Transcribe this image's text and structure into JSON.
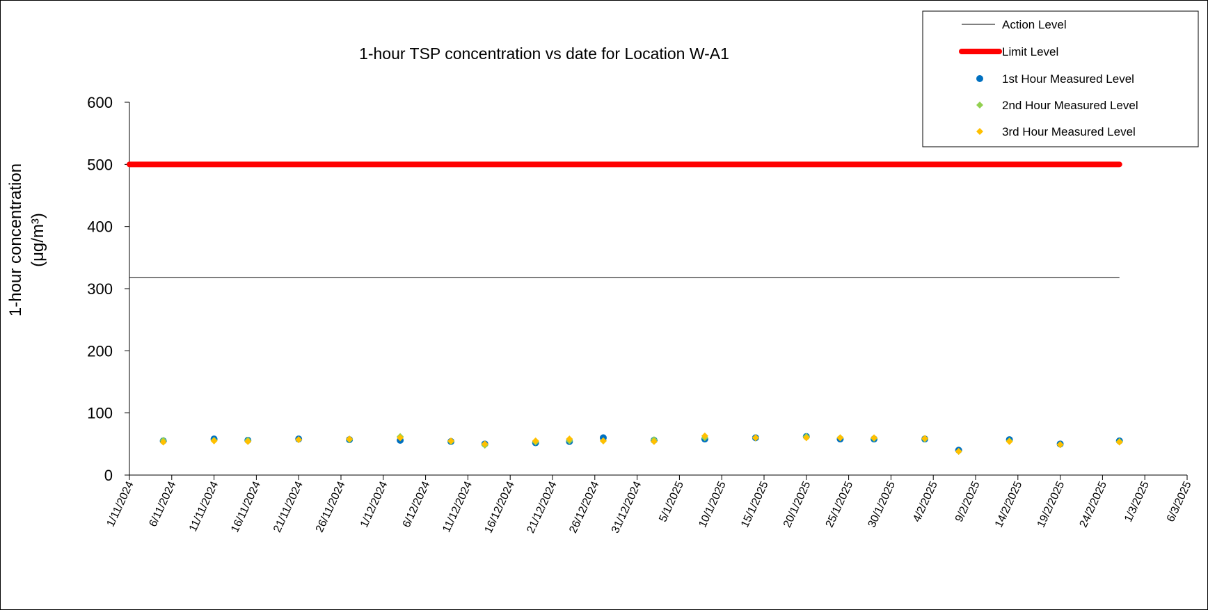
{
  "chart_data": {
    "type": "scatter",
    "title": "1-hour TSP concentration vs date for Location W-A1",
    "ylabel_line1": "1-hour concentration",
    "ylabel_line2": "(μg/m³)",
    "ylim": [
      0,
      600
    ],
    "yticks": [
      0,
      100,
      200,
      300,
      400,
      500,
      600
    ],
    "x_start": "2024-11-01",
    "x_end": "2025-03-06",
    "x_ticks": [
      "1/11/2024",
      "6/11/2024",
      "11/11/2024",
      "16/11/2024",
      "21/11/2024",
      "26/11/2024",
      "1/12/2024",
      "6/12/2024",
      "11/12/2024",
      "16/12/2024",
      "21/12/2024",
      "26/12/2024",
      "31/12/2024",
      "5/1/2025",
      "10/1/2025",
      "15/1/2025",
      "20/1/2025",
      "25/1/2025",
      "30/1/2025",
      "4/2/2025",
      "9/2/2025",
      "14/2/2025",
      "19/2/2025",
      "24/2/2025",
      "1/3/2025",
      "6/3/2025"
    ],
    "grid": false,
    "legend_position": "top-right",
    "action_level": {
      "name": "Action Level",
      "value": 318,
      "x": [
        "2024-11-01",
        "2025-02-26"
      ],
      "color": "#000000"
    },
    "limit_level": {
      "name": "Limit Level",
      "value": 500,
      "x": [
        "2024-11-01",
        "2025-02-26"
      ],
      "color": "#ff0000"
    },
    "x": [
      "2024-11-05",
      "2024-11-11",
      "2024-11-15",
      "2024-11-21",
      "2024-11-27",
      "2024-12-03",
      "2024-12-09",
      "2024-12-13",
      "2024-12-19",
      "2024-12-23",
      "2024-12-27",
      "2025-01-02",
      "2025-01-08",
      "2025-01-14",
      "2025-01-20",
      "2025-01-24",
      "2025-01-28",
      "2025-02-03",
      "2025-02-07",
      "2025-02-13",
      "2025-02-19",
      "2025-02-26"
    ],
    "series": [
      {
        "name": "1st Hour Measured Level",
        "marker": "circle",
        "color": "#0070c0",
        "values": [
          55,
          58,
          56,
          58,
          57,
          56,
          54,
          50,
          52,
          54,
          60,
          56,
          58,
          60,
          62,
          58,
          58,
          58,
          40,
          57,
          50,
          55
        ]
      },
      {
        "name": "2nd Hour Measured Level",
        "marker": "diamond",
        "color": "#92d050",
        "values": [
          56,
          56,
          56,
          57,
          57,
          62,
          54,
          48,
          53,
          55,
          55,
          57,
          60,
          60,
          62,
          60,
          59,
          58,
          38,
          55,
          49,
          54
        ]
      },
      {
        "name": "3rd Hour Measured Level",
        "marker": "diamond",
        "color": "#ffc000",
        "values": [
          53,
          55,
          54,
          57,
          58,
          60,
          55,
          50,
          55,
          58,
          55,
          54,
          63,
          60,
          60,
          60,
          60,
          59,
          38,
          54,
          49,
          53
        ]
      }
    ]
  }
}
